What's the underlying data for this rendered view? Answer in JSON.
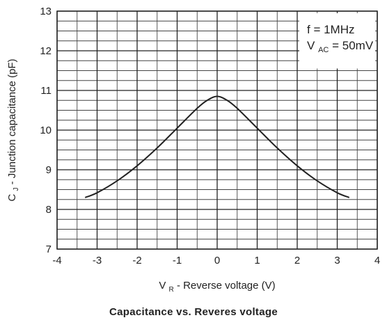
{
  "chart_data": {
    "type": "line",
    "title": "Capacitance vs. Reveres voltage",
    "xlabel": "V_R - Reverse voltage (V)",
    "xlabel_parts": {
      "main": "V",
      "sub": "R",
      "rest": " - Reverse voltage (V)"
    },
    "ylabel": "C_J - Junction capacitance (pF)",
    "ylabel_parts": {
      "main": "C",
      "sub": "J",
      "rest": " - Junction capacitance (pF)"
    },
    "xlim": [
      -4,
      4
    ],
    "ylim": [
      7,
      13
    ],
    "x_ticks": [
      -4,
      -3,
      -2,
      -1,
      0,
      1,
      2,
      3,
      4
    ],
    "y_ticks": [
      7,
      8,
      9,
      10,
      11,
      12,
      13
    ],
    "x_minor_step": 0.5,
    "y_minor_step": 0.25,
    "grid": true,
    "annotations": {
      "line1": "f = 1MHz",
      "line2_main": "V",
      "line2_sub": "AC",
      "line2_rest": " = 50mV",
      "placement": "top-right"
    },
    "series": [
      {
        "color": "#222222",
        "points": [
          [
            -3.3,
            8.3
          ],
          [
            -3.0,
            8.42
          ],
          [
            -2.5,
            8.72
          ],
          [
            -2.0,
            9.1
          ],
          [
            -1.5,
            9.55
          ],
          [
            -1.0,
            10.05
          ],
          [
            -0.5,
            10.55
          ],
          [
            -0.25,
            10.75
          ],
          [
            0.0,
            10.85
          ],
          [
            0.25,
            10.75
          ],
          [
            0.5,
            10.55
          ],
          [
            1.0,
            10.05
          ],
          [
            1.5,
            9.55
          ],
          [
            2.0,
            9.1
          ],
          [
            2.5,
            8.72
          ],
          [
            3.0,
            8.42
          ],
          [
            3.3,
            8.3
          ]
        ]
      }
    ]
  }
}
